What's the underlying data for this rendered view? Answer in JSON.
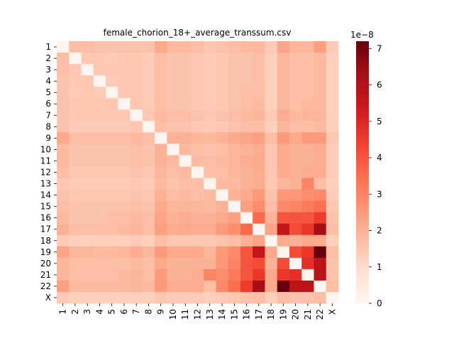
{
  "chart_data": {
    "type": "heatmap",
    "title": "female_chorion_18+_average_transsum.csv",
    "labels": [
      "1",
      "2",
      "3",
      "4",
      "5",
      "6",
      "7",
      "8",
      "9",
      "10",
      "11",
      "12",
      "13",
      "14",
      "15",
      "16",
      "17",
      "18",
      "19",
      "20",
      "21",
      "22",
      "X"
    ],
    "colorbar": {
      "min": 0,
      "max": 7.2,
      "ticks": [
        0,
        1,
        2,
        3,
        4,
        5,
        6,
        7
      ],
      "exponent_label": "1e−8",
      "colormap": "Reds"
    },
    "values": [
      [
        0.0,
        1.7,
        1.7,
        1.6,
        1.6,
        1.6,
        1.6,
        1.6,
        2.2,
        1.8,
        1.8,
        1.7,
        1.5,
        1.6,
        1.7,
        1.8,
        1.8,
        1.4,
        2.3,
        1.9,
        1.9,
        2.4,
        1.4
      ],
      [
        1.7,
        0.0,
        1.5,
        1.5,
        1.4,
        1.5,
        1.5,
        1.4,
        1.7,
        1.6,
        1.6,
        1.5,
        1.4,
        1.5,
        1.6,
        1.6,
        1.7,
        1.3,
        1.9,
        1.7,
        1.7,
        1.8,
        1.3
      ],
      [
        1.7,
        1.5,
        0.0,
        1.5,
        1.5,
        1.5,
        1.5,
        1.4,
        1.7,
        1.6,
        1.6,
        1.5,
        1.4,
        1.5,
        1.6,
        1.6,
        1.7,
        1.3,
        1.9,
        1.7,
        1.7,
        1.8,
        1.3
      ],
      [
        1.6,
        1.5,
        1.5,
        0.0,
        1.4,
        1.5,
        1.5,
        1.4,
        1.7,
        1.6,
        1.6,
        1.5,
        1.4,
        1.5,
        1.6,
        1.6,
        1.7,
        1.3,
        1.9,
        1.7,
        1.7,
        1.8,
        1.3
      ],
      [
        1.6,
        1.4,
        1.5,
        1.4,
        0.0,
        1.5,
        1.5,
        1.4,
        1.7,
        1.6,
        1.6,
        1.5,
        1.4,
        1.5,
        1.6,
        1.7,
        1.7,
        1.3,
        1.9,
        1.7,
        1.7,
        1.8,
        1.3
      ],
      [
        1.6,
        1.5,
        1.5,
        1.5,
        1.5,
        0.0,
        1.5,
        1.4,
        1.7,
        1.6,
        1.6,
        1.5,
        1.4,
        1.5,
        1.6,
        1.7,
        1.8,
        1.3,
        1.9,
        1.7,
        1.8,
        1.8,
        1.3
      ],
      [
        1.6,
        1.5,
        1.5,
        1.5,
        1.5,
        1.5,
        0.0,
        1.5,
        1.8,
        1.7,
        1.7,
        1.6,
        1.5,
        1.6,
        1.7,
        1.8,
        1.9,
        1.4,
        2.1,
        1.8,
        1.9,
        1.9,
        1.3
      ],
      [
        1.6,
        1.4,
        1.4,
        1.4,
        1.4,
        1.4,
        1.5,
        0.0,
        1.7,
        1.6,
        1.6,
        1.5,
        1.4,
        1.5,
        1.6,
        1.7,
        1.7,
        1.3,
        1.9,
        1.7,
        1.7,
        1.8,
        1.3
      ],
      [
        2.2,
        1.7,
        1.7,
        1.7,
        1.7,
        1.7,
        1.8,
        1.7,
        0.0,
        2.0,
        2.0,
        1.9,
        1.8,
        2.0,
        2.2,
        2.3,
        2.4,
        1.7,
        2.5,
        2.2,
        2.5,
        2.5,
        1.5
      ],
      [
        1.8,
        1.6,
        1.6,
        1.6,
        1.6,
        1.6,
        1.7,
        1.6,
        2.0,
        0.0,
        1.8,
        1.7,
        1.6,
        1.7,
        1.9,
        2.0,
        2.1,
        1.5,
        2.2,
        2.0,
        2.0,
        2.1,
        1.4
      ],
      [
        1.8,
        1.6,
        1.6,
        1.6,
        1.6,
        1.6,
        1.7,
        1.6,
        2.0,
        1.8,
        0.0,
        1.8,
        1.7,
        1.8,
        1.9,
        2.1,
        2.2,
        1.5,
        2.2,
        2.0,
        2.0,
        2.1,
        1.4
      ],
      [
        1.7,
        1.5,
        1.5,
        1.5,
        1.5,
        1.5,
        1.6,
        1.5,
        1.9,
        1.7,
        1.8,
        0.0,
        1.7,
        1.7,
        1.9,
        2.0,
        2.1,
        1.5,
        2.2,
        2.0,
        2.1,
        2.1,
        1.4
      ],
      [
        1.5,
        1.4,
        1.4,
        1.4,
        1.4,
        1.4,
        1.5,
        1.4,
        1.8,
        1.6,
        1.7,
        1.7,
        0.0,
        1.8,
        1.8,
        2.0,
        2.1,
        1.5,
        1.9,
        2.0,
        3.0,
        1.7,
        1.3
      ],
      [
        1.6,
        1.5,
        1.5,
        1.5,
        1.5,
        1.5,
        1.6,
        1.5,
        2.0,
        1.7,
        1.8,
        1.7,
        1.8,
        0.0,
        2.0,
        2.2,
        2.5,
        1.6,
        2.6,
        2.6,
        2.8,
        2.9,
        1.4
      ],
      [
        1.7,
        1.6,
        1.6,
        1.6,
        1.6,
        1.6,
        1.7,
        1.6,
        2.2,
        1.9,
        1.9,
        1.9,
        1.8,
        2.0,
        0.0,
        2.4,
        2.8,
        1.7,
        2.9,
        3.0,
        3.2,
        3.5,
        1.5
      ],
      [
        1.8,
        1.6,
        1.6,
        1.6,
        1.7,
        1.7,
        1.8,
        1.7,
        2.3,
        2.0,
        2.1,
        2.0,
        2.0,
        2.2,
        2.4,
        0.0,
        3.6,
        2.0,
        4.0,
        4.0,
        4.0,
        4.5,
        1.6
      ],
      [
        2.0,
        1.7,
        1.7,
        1.7,
        1.7,
        1.8,
        1.9,
        1.7,
        2.4,
        2.1,
        2.2,
        2.1,
        2.1,
        2.5,
        2.8,
        3.6,
        0.0,
        2.3,
        5.6,
        4.2,
        4.6,
        6.3,
        1.7
      ],
      [
        1.4,
        1.3,
        1.3,
        1.3,
        1.3,
        1.3,
        1.4,
        1.3,
        1.7,
        1.5,
        1.5,
        1.5,
        1.5,
        1.6,
        1.7,
        2.0,
        2.3,
        0.0,
        2.2,
        2.0,
        2.2,
        2.2,
        1.3
      ],
      [
        2.3,
        1.9,
        1.9,
        1.8,
        1.8,
        1.9,
        2.1,
        1.9,
        2.5,
        2.2,
        2.2,
        2.2,
        1.9,
        2.6,
        2.9,
        4.0,
        5.6,
        2.2,
        0.0,
        4.2,
        4.6,
        7.2,
        1.7
      ],
      [
        1.9,
        1.7,
        1.7,
        1.7,
        1.7,
        1.7,
        1.8,
        1.7,
        2.2,
        2.0,
        2.0,
        2.0,
        2.0,
        2.6,
        3.0,
        4.0,
        4.2,
        2.0,
        4.2,
        0.0,
        4.8,
        5.8,
        1.6
      ],
      [
        1.9,
        1.7,
        1.7,
        1.7,
        1.7,
        1.8,
        1.9,
        1.7,
        2.5,
        2.0,
        2.0,
        2.1,
        3.0,
        2.8,
        3.2,
        4.0,
        4.6,
        2.2,
        4.6,
        4.8,
        0.0,
        5.8,
        1.6
      ],
      [
        2.4,
        1.8,
        1.8,
        1.8,
        1.8,
        1.8,
        1.9,
        1.8,
        2.5,
        2.1,
        2.1,
        2.1,
        1.7,
        2.9,
        3.5,
        4.5,
        6.3,
        2.2,
        7.2,
        5.8,
        5.8,
        0.0,
        1.7
      ],
      [
        1.4,
        1.3,
        1.3,
        1.3,
        1.3,
        1.3,
        1.3,
        1.3,
        1.5,
        1.4,
        1.4,
        1.4,
        1.3,
        1.4,
        1.5,
        1.6,
        1.7,
        1.3,
        1.7,
        1.6,
        1.6,
        1.7,
        0.0
      ]
    ]
  }
}
